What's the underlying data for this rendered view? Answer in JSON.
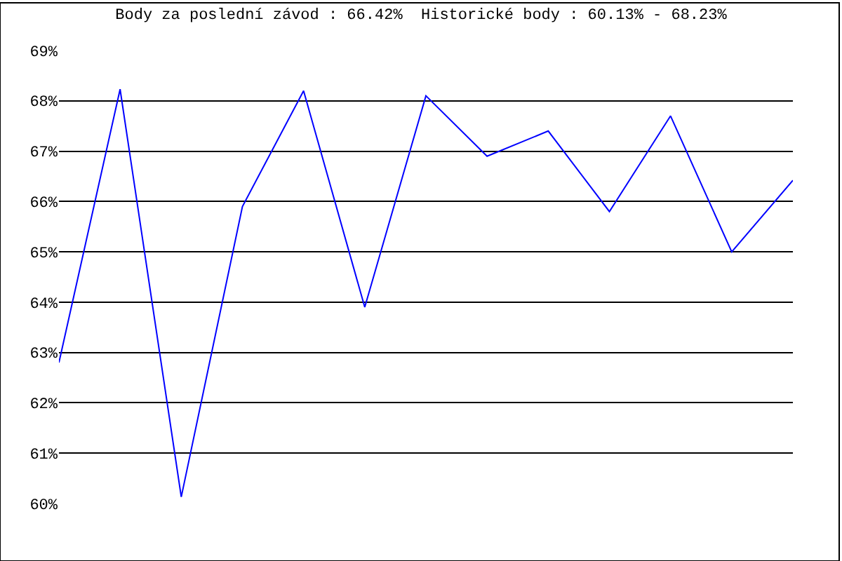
{
  "chart_data": {
    "type": "line",
    "title": "Body za poslední závod : 66.42%  Historické body : 60.13% - 68.23%",
    "categories": [
      null,
      null,
      null,
      null,
      null,
      null,
      null,
      null,
      null,
      null,
      null,
      null,
      null
    ],
    "series": [
      {
        "color": "#0000ff",
        "values": [
          62.8,
          68.23,
          60.13,
          65.9,
          68.2,
          63.9,
          68.1,
          66.9,
          67.4,
          65.8,
          67.7,
          65.0,
          66.42
        ]
      }
    ],
    "ylim": [
      60,
      69
    ],
    "yticks": [
      {
        "value": 60,
        "label": "60%"
      },
      {
        "value": 61,
        "label": "61%"
      },
      {
        "value": 62,
        "label": "62%"
      },
      {
        "value": 63,
        "label": "63%"
      },
      {
        "value": 64,
        "label": "64%"
      },
      {
        "value": 65,
        "label": "65%"
      },
      {
        "value": 66,
        "label": "66%"
      },
      {
        "value": 67,
        "label": "67%"
      },
      {
        "value": 68,
        "label": "68%"
      },
      {
        "value": 69,
        "label": "69%"
      }
    ],
    "grid": "y",
    "marker": "none",
    "line_style": "solid",
    "legend": false
  }
}
